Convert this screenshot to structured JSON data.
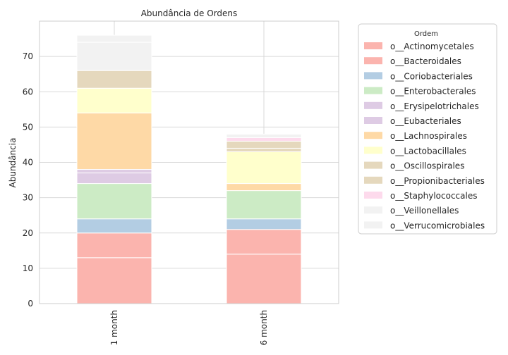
{
  "chart_data": {
    "type": "bar",
    "stacked": true,
    "title": "Abundância de Ordens",
    "xlabel": "",
    "ylabel": "Abundância",
    "ylim": [
      0,
      80
    ],
    "yticks": [
      0,
      10,
      20,
      30,
      40,
      50,
      60,
      70
    ],
    "grid": true,
    "legend_title": "Ordem",
    "legend_position": "outside-right",
    "categories": [
      "1 month",
      "6 month"
    ],
    "series": [
      {
        "name": "o__Actinomycetales",
        "color": "#fbb4ae",
        "values": [
          13,
          14
        ]
      },
      {
        "name": "o__Bacteroidales",
        "color": "#fbb4ae",
        "values": [
          7,
          7
        ]
      },
      {
        "name": "o__Coriobacteriales",
        "color": "#b3cde3",
        "values": [
          4,
          3
        ]
      },
      {
        "name": "o__Enterobacterales",
        "color": "#ccebc5",
        "values": [
          10,
          8
        ]
      },
      {
        "name": "o__Erysipelotrichales",
        "color": "#decbe4",
        "values": [
          3,
          0
        ]
      },
      {
        "name": "o__Eubacteriales",
        "color": "#decbe4",
        "values": [
          1,
          0
        ]
      },
      {
        "name": "o__Lachnospirales",
        "color": "#fed9a6",
        "values": [
          16,
          2
        ]
      },
      {
        "name": "o__Lactobacillales",
        "color": "#ffffcc",
        "values": [
          7,
          9
        ]
      },
      {
        "name": "o__Oscillospirales",
        "color": "#e5d8bd",
        "values": [
          5,
          1
        ]
      },
      {
        "name": "o__Propionibacteriales",
        "color": "#e5d8bd",
        "values": [
          0,
          2
        ]
      },
      {
        "name": "o__Staphylococcales",
        "color": "#fddaec",
        "values": [
          0,
          1
        ]
      },
      {
        "name": "o__Veillonellales",
        "color": "#f2f2f2",
        "values": [
          8,
          1
        ]
      },
      {
        "name": "o__Verrucomicrobiales",
        "color": "#f2f2f2",
        "values": [
          2,
          0
        ]
      }
    ]
  }
}
